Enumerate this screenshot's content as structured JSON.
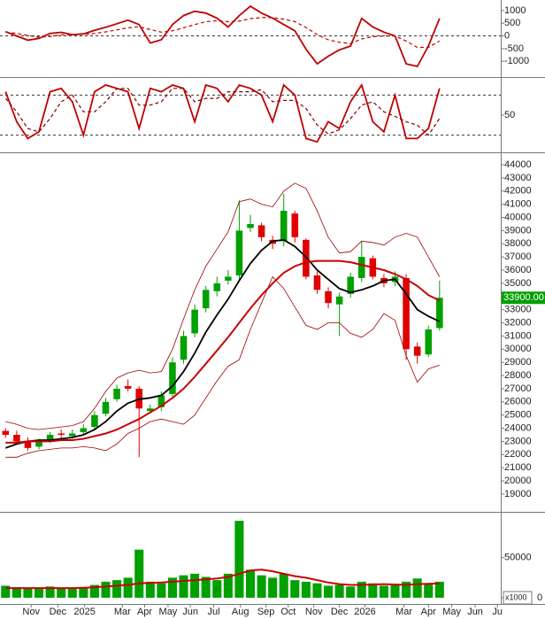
{
  "chart_data": [
    {
      "type": "lines",
      "xlim": [
        -0.5,
        44.5
      ],
      "x": [
        0,
        1,
        2,
        3,
        4,
        5,
        6,
        7,
        8,
        9,
        10,
        11,
        12,
        13,
        14,
        15,
        16,
        17,
        18,
        19,
        20,
        21,
        22,
        23,
        24,
        25,
        26,
        27,
        28,
        29,
        30,
        31,
        32,
        33,
        34,
        35,
        36,
        37,
        38,
        39
      ],
      "ylim": [
        -1550,
        1310
      ],
      "yticks": [
        1000,
        500,
        0,
        -500,
        -1000
      ],
      "levels": [
        0
      ],
      "series": [
        {
          "color": "#c00000",
          "values": [
            170,
            0,
            -170,
            -100,
            100,
            140,
            50,
            80,
            220,
            340,
            480,
            620,
            450,
            -280,
            -150,
            450,
            800,
            970,
            900,
            700,
            350,
            800,
            1170,
            900,
            700,
            450,
            200,
            -520,
            -1100,
            -800,
            -550,
            -400,
            690,
            350,
            150,
            0,
            -1100,
            -1200,
            -400,
            690
          ]
        },
        {
          "color": "#c00000",
          "dashed": true,
          "values": [
            150,
            100,
            20,
            -50,
            -20,
            40,
            50,
            60,
            100,
            160,
            240,
            320,
            360,
            250,
            150,
            200,
            320,
            450,
            560,
            600,
            560,
            580,
            680,
            720,
            720,
            660,
            560,
            330,
            50,
            -150,
            -250,
            -300,
            -120,
            -30,
            0,
            0,
            -200,
            -450,
            -450,
            -200
          ]
        }
      ]
    },
    {
      "type": "lines",
      "xlim": [
        -0.5,
        44.5
      ],
      "x": [
        0,
        1,
        2,
        3,
        4,
        5,
        6,
        7,
        8,
        9,
        10,
        11,
        12,
        13,
        14,
        15,
        16,
        17,
        18,
        19,
        20,
        21,
        22,
        23,
        24,
        25,
        26,
        27,
        28,
        29,
        30,
        31,
        32,
        33,
        34,
        35,
        36,
        37,
        38,
        39
      ],
      "ylim": [
        -3,
        103
      ],
      "yticks": [
        50
      ],
      "levels": [
        20,
        80
      ],
      "series": [
        {
          "color": "#c00000",
          "values": [
            85,
            40,
            15,
            25,
            85,
            90,
            70,
            20,
            85,
            95,
            90,
            85,
            30,
            90,
            85,
            95,
            90,
            40,
            95,
            90,
            70,
            95,
            90,
            80,
            40,
            95,
            80,
            15,
            10,
            40,
            30,
            70,
            95,
            40,
            25,
            80,
            15,
            15,
            30,
            90
          ]
        },
        {
          "color": "#800000",
          "dashed": true,
          "values": [
            75,
            55,
            30,
            25,
            45,
            70,
            80,
            55,
            55,
            70,
            90,
            90,
            65,
            65,
            70,
            90,
            90,
            70,
            75,
            75,
            85,
            85,
            85,
            88,
            70,
            72,
            72,
            60,
            35,
            22,
            28,
            45,
            65,
            70,
            55,
            48,
            40,
            35,
            20,
            45
          ]
        }
      ]
    },
    {
      "type": "candlestick",
      "xlim": [
        -0.5,
        44.5
      ],
      "x": [
        0,
        1,
        2,
        3,
        4,
        5,
        6,
        7,
        8,
        9,
        10,
        11,
        12,
        13,
        14,
        15,
        16,
        17,
        18,
        19,
        20,
        21,
        22,
        23,
        24,
        25,
        26,
        27,
        28,
        29,
        30,
        31,
        32,
        33,
        34,
        35,
        36,
        37,
        38,
        39
      ],
      "ylim": [
        17720,
        44740
      ],
      "yticks": [
        44000,
        43000,
        42000,
        41000,
        40000,
        39000,
        38000,
        37000,
        36000,
        35000,
        34000,
        33000,
        32000,
        31000,
        30000,
        29000,
        28000,
        27000,
        26000,
        25000,
        24000,
        23000,
        22000,
        21000,
        20000,
        19000
      ],
      "up_color": "#00a000",
      "down_color": "#e00000",
      "open": [
        23800,
        23500,
        23000,
        22600,
        23100,
        23600,
        23400,
        23700,
        24100,
        25100,
        26200,
        27200,
        27000,
        25300,
        25600,
        26600,
        29200,
        31200,
        33100,
        34400,
        35200,
        35600,
        39200,
        39400,
        38300,
        38200,
        40300,
        38300,
        35600,
        34400,
        33400,
        34200,
        35400,
        36900,
        35400,
        35100,
        35400,
        30200,
        29600,
        31600
      ],
      "high": [
        24000,
        23800,
        23300,
        23200,
        23700,
        23900,
        23900,
        24300,
        25300,
        26300,
        27300,
        27700,
        27200,
        25800,
        26800,
        29400,
        31400,
        33400,
        34800,
        35500,
        36000,
        41300,
        40200,
        39600,
        38600,
        41800,
        40500,
        38400,
        35900,
        34700,
        34300,
        35800,
        38200,
        37100,
        35700,
        35900,
        35700,
        30500,
        31800,
        35200
      ],
      "low": [
        23300,
        22800,
        22300,
        22400,
        22900,
        23200,
        23200,
        23500,
        23900,
        24900,
        26000,
        26800,
        21800,
        25100,
        25300,
        26400,
        28900,
        30900,
        32800,
        34000,
        34900,
        35300,
        38900,
        38200,
        37600,
        37800,
        38100,
        35300,
        34200,
        33100,
        31000,
        33900,
        35100,
        35300,
        34700,
        34800,
        29200,
        28900,
        29400,
        31400
      ],
      "close": [
        23500,
        23000,
        22500,
        23000,
        23500,
        23500,
        23600,
        24000,
        25000,
        26000,
        27000,
        27000,
        25500,
        25500,
        26500,
        29000,
        31000,
        33000,
        34500,
        35000,
        35500,
        39000,
        39500,
        38500,
        38000,
        40500,
        38500,
        35500,
        34500,
        33500,
        34000,
        35500,
        37000,
        35500,
        35000,
        35500,
        30000,
        29500,
        31500,
        33900
      ],
      "last_label": "33900.00",
      "last_color": "#00a000",
      "overlays": [
        {
          "color": "#000000",
          "width": 1.8,
          "values": [
            22500,
            22800,
            23000,
            23100,
            23100,
            23200,
            23300,
            23500,
            23900,
            24500,
            25300,
            25900,
            26200,
            26300,
            26500,
            27200,
            28300,
            29700,
            31300,
            32600,
            33800,
            35200,
            36500,
            37500,
            38200,
            38300,
            37800,
            37000,
            36000,
            35300,
            34600,
            34300,
            34500,
            34800,
            35200,
            35300,
            34200,
            33000,
            32500,
            32100
          ]
        },
        {
          "color": "#cc0000",
          "width": 2,
          "values": [
            22900,
            22900,
            23000,
            23000,
            23000,
            23100,
            23100,
            23200,
            23400,
            23600,
            23900,
            24300,
            24700,
            25200,
            25700,
            26300,
            27000,
            27900,
            28900,
            29900,
            30900,
            32000,
            33100,
            34100,
            35000,
            35800,
            36300,
            36600,
            36700,
            36700,
            36700,
            36600,
            36400,
            36200,
            36000,
            35700,
            35300,
            34800,
            34100,
            33700
          ]
        },
        {
          "color": "#a00000",
          "width": 0.8,
          "values": [
            24500,
            24300,
            24000,
            23900,
            24000,
            24100,
            24200,
            24500,
            25500,
            26800,
            27800,
            28200,
            28400,
            28200,
            28300,
            30000,
            32300,
            34500,
            36300,
            37600,
            38900,
            41200,
            41400,
            41000,
            40800,
            42000,
            42600,
            42200,
            40500,
            38500,
            37300,
            37400,
            38200,
            38100,
            37900,
            38500,
            38800,
            38500,
            37000,
            35500
          ]
        },
        {
          "color": "#a00000",
          "width": 0.8,
          "values": [
            21800,
            21800,
            22100,
            22300,
            22400,
            22500,
            22500,
            22600,
            22500,
            22300,
            22800,
            23600,
            24000,
            24500,
            24700,
            24500,
            24300,
            25000,
            26300,
            27600,
            28700,
            29200,
            31500,
            33500,
            35500,
            34600,
            33200,
            31800,
            31500,
            32000,
            32000,
            31200,
            30900,
            31500,
            32700,
            32200,
            29500,
            27500,
            28500,
            28800
          ]
        }
      ]
    },
    {
      "type": "bar",
      "xlim": [
        -0.5,
        44.5
      ],
      "x": [
        0,
        1,
        2,
        3,
        4,
        5,
        6,
        7,
        8,
        9,
        10,
        11,
        12,
        13,
        14,
        15,
        16,
        17,
        18,
        19,
        20,
        21,
        22,
        23,
        24,
        25,
        26,
        27,
        28,
        29,
        30,
        31,
        32,
        33,
        34,
        35,
        36,
        37,
        38,
        39
      ],
      "ylim": [
        0,
        105000
      ],
      "yticks": [
        50000,
        0
      ],
      "y_unit": "x1000",
      "color": "#00a000",
      "values": [
        15000,
        13000,
        12000,
        11000,
        14000,
        12000,
        11000,
        13000,
        16000,
        20000,
        22000,
        25000,
        60000,
        20000,
        18000,
        25000,
        28000,
        30000,
        26000,
        22000,
        30000,
        96000,
        35000,
        28000,
        25000,
        30000,
        22000,
        20000,
        18000,
        15000,
        16000,
        14000,
        20000,
        18000,
        15000,
        16000,
        20000,
        24000,
        18000,
        20000
      ],
      "overlays": [
        {
          "color": "#cc0000",
          "width": 2,
          "values": [
            12000,
            12000,
            12000,
            12000,
            12000,
            12000,
            12000,
            12500,
            13000,
            14000,
            15000,
            16000,
            18000,
            18500,
            19000,
            20000,
            21000,
            22000,
            23000,
            24000,
            26000,
            30000,
            34000,
            35000,
            33000,
            30000,
            27000,
            25000,
            22000,
            19000,
            17000,
            16000,
            16000,
            16500,
            17000,
            16500,
            16000,
            17000,
            17500,
            18000
          ]
        }
      ],
      "xticks": [
        {
          "value": 2.3,
          "label": "Nov"
        },
        {
          "value": 4.7,
          "label": "Dec"
        },
        {
          "value": 7.1,
          "label": "2025"
        },
        {
          "value": 10.5,
          "label": "Mar"
        },
        {
          "value": 12.5,
          "label": "Apr"
        },
        {
          "value": 14.6,
          "label": "May"
        },
        {
          "value": 16.6,
          "label": "Jun"
        },
        {
          "value": 18.7,
          "label": "Jul"
        },
        {
          "value": 21.1,
          "label": "Aug"
        },
        {
          "value": 23.4,
          "label": "Sep"
        },
        {
          "value": 25.4,
          "label": "Oct"
        },
        {
          "value": 27.7,
          "label": "Nov"
        },
        {
          "value": 30.0,
          "label": "Dec"
        },
        {
          "value": 32.3,
          "label": "2026"
        },
        {
          "value": 35.8,
          "label": "Mar"
        },
        {
          "value": 38.0,
          "label": "Apr"
        },
        {
          "value": 40.1,
          "label": "May"
        },
        {
          "value": 42.2,
          "label": "Jun"
        },
        {
          "value": 44.2,
          "label": "Ju"
        }
      ]
    }
  ]
}
